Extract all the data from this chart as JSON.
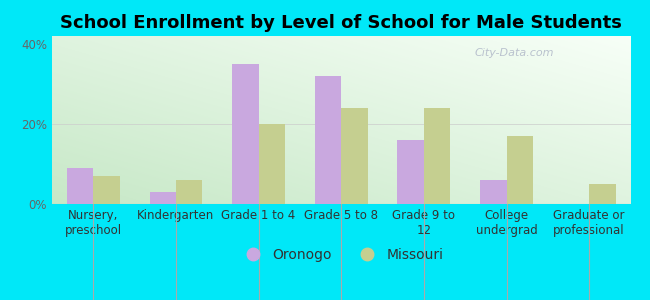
{
  "title": "School Enrollment by Level of School for Male Students",
  "categories": [
    "Nursery,\npreschool",
    "Kindergarten",
    "Grade 1 to 4",
    "Grade 5 to 8",
    "Grade 9 to\n12",
    "College\nundergrad",
    "Graduate or\nprofessional"
  ],
  "oronogo": [
    9,
    3,
    35,
    32,
    16,
    6,
    0
  ],
  "missouri": [
    7,
    6,
    20,
    24,
    24,
    17,
    5
  ],
  "oronogo_color": "#c9a8df",
  "missouri_color": "#c5cf90",
  "bar_width": 0.32,
  "ylim": [
    0,
    42
  ],
  "yticks": [
    0,
    20,
    40
  ],
  "ytick_labels": [
    "0%",
    "20%",
    "40%"
  ],
  "background_outer": "#00e8f8",
  "legend_labels": [
    "Oronogo",
    "Missouri"
  ],
  "title_fontsize": 13,
  "tick_fontsize": 8.5,
  "watermark": "City-Data.com"
}
